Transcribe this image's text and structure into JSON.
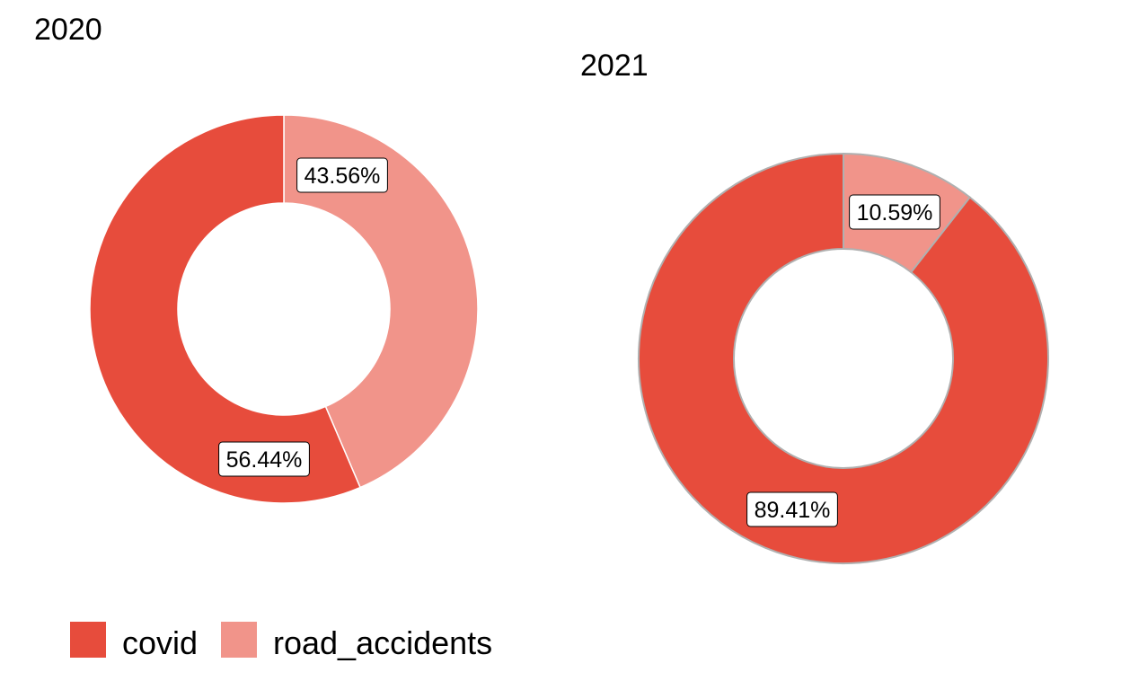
{
  "chart_data": [
    {
      "type": "pie",
      "style": "donut",
      "title": "2020",
      "slices": [
        {
          "name": "road_accidents",
          "value": 43.56,
          "label": "43.56%"
        },
        {
          "name": "covid",
          "value": 56.44,
          "label": "56.44%"
        }
      ]
    },
    {
      "type": "pie",
      "style": "donut",
      "title": "2021",
      "slices": [
        {
          "name": "road_accidents",
          "value": 10.59,
          "label": "10.59%"
        },
        {
          "name": "covid",
          "value": 89.41,
          "label": "89.41%"
        }
      ]
    }
  ],
  "legend": {
    "placement": "bottom-left",
    "items": [
      {
        "name": "covid",
        "color": "#E74C3C"
      },
      {
        "name": "road_accidents",
        "color": "#F1948A"
      }
    ]
  },
  "colors": {
    "covid": "#E74C3C",
    "road_accidents": "#F1948A"
  }
}
